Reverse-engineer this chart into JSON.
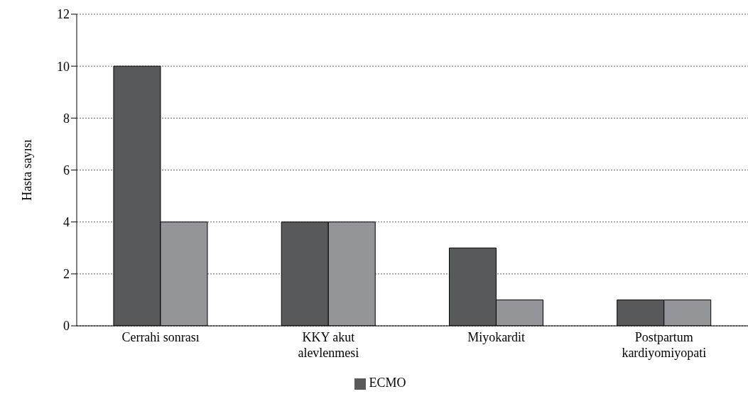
{
  "chart_data": {
    "type": "bar",
    "ylabel": "Hasta sayısı",
    "categories": [
      "Cerrahi sonrası",
      "KKY akut alevlenmesi",
      "Miyokardit",
      "Postpartum kardiyomiyopati"
    ],
    "series": [
      {
        "name": "ECMO",
        "color": "#58595b",
        "values": [
          10,
          4,
          3,
          1
        ]
      },
      {
        "color": "#939598",
        "values": [
          4,
          4,
          1,
          1
        ]
      }
    ],
    "ylim": [
      0,
      12
    ],
    "yticks": [
      0,
      2,
      4,
      6,
      8,
      10,
      12
    ],
    "grid": "y",
    "legend": "bottom"
  }
}
